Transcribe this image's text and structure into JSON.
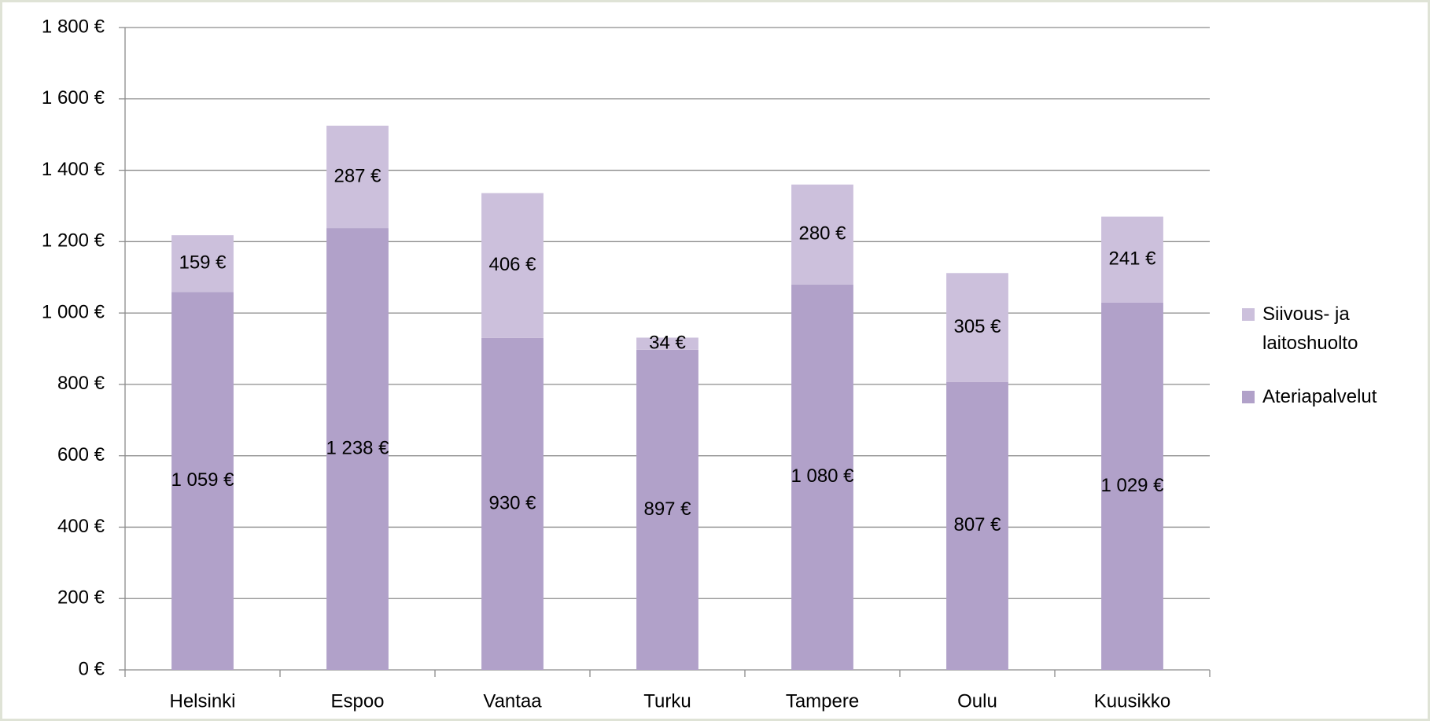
{
  "chart_data": {
    "type": "stacked_bar",
    "categories": [
      "Helsinki",
      "Espoo",
      "Vantaa",
      "Turku",
      "Tampere",
      "Oulu",
      "Kuusikko"
    ],
    "series": [
      {
        "name": "Ateriapalvelut",
        "color": "#b1a1c9",
        "values": [
          1059,
          1238,
          930,
          897,
          1080,
          807,
          1029
        ],
        "value_labels": [
          "1 059 €",
          "1 238 €",
          "930 €",
          "897 €",
          "1 080 €",
          "807 €",
          "1 029 €"
        ]
      },
      {
        "name": "Siivous- ja laitoshuolto",
        "color": "#ccc0dc",
        "values": [
          159,
          287,
          406,
          34,
          280,
          305,
          241
        ],
        "value_labels": [
          "159 €",
          "287 €",
          "406 €",
          "34 €",
          "280 €",
          "305 €",
          "241 €"
        ]
      }
    ],
    "ylim": [
      0,
      1800
    ],
    "yticks": [
      {
        "value": 0,
        "label": "0 €"
      },
      {
        "value": 200,
        "label": "200 €"
      },
      {
        "value": 400,
        "label": "400 €"
      },
      {
        "value": 600,
        "label": "600 €"
      },
      {
        "value": 800,
        "label": "800 €"
      },
      {
        "value": 1000,
        "label": "1 000 €"
      },
      {
        "value": 1200,
        "label": "1 200 €"
      },
      {
        "value": 1400,
        "label": "1 400 €"
      },
      {
        "value": 1600,
        "label": "1 600 €"
      },
      {
        "value": 1800,
        "label": "1 800 €"
      }
    ],
    "grid": true,
    "legend": "right"
  }
}
